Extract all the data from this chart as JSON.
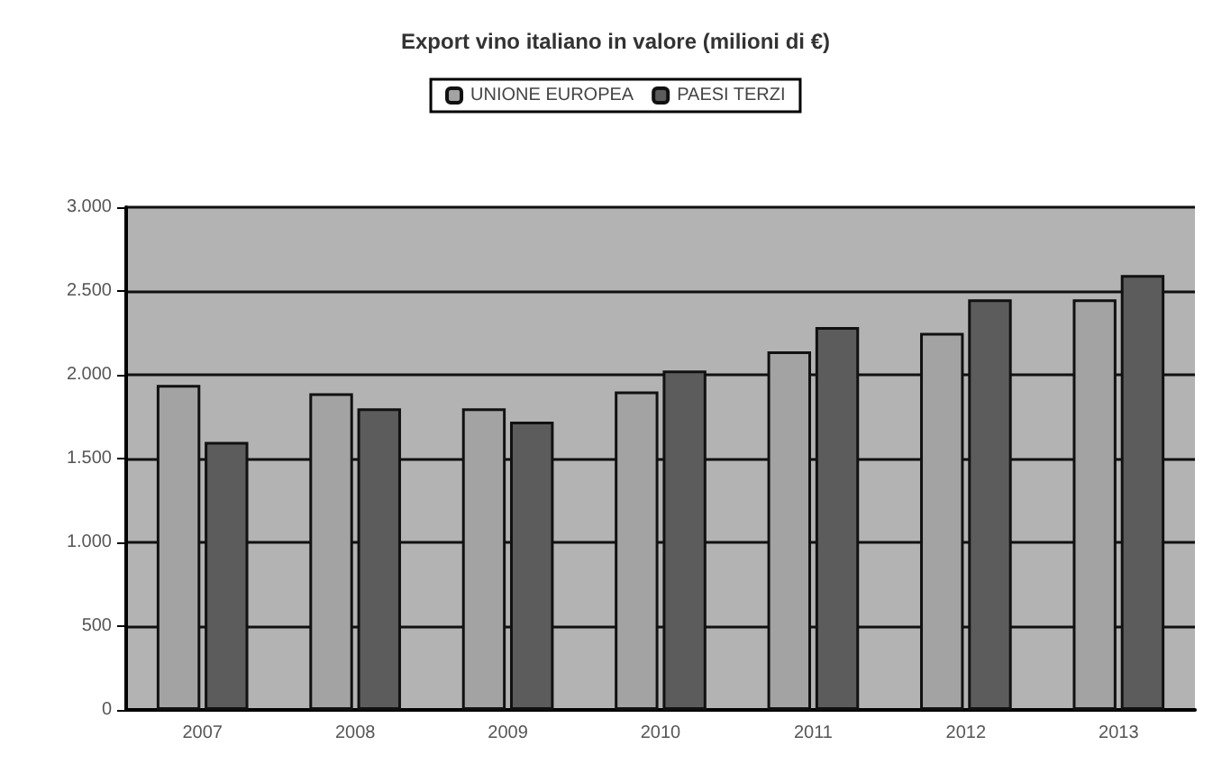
{
  "chart_data": {
    "type": "bar",
    "title": "Export vino italiano in valore (milioni di €)",
    "categories": [
      "2007",
      "2008",
      "2009",
      "2010",
      "2011",
      "2012",
      "2013"
    ],
    "series": [
      {
        "name": "UNIONE EUROPEA",
        "color": "#a3a3a3",
        "values": [
          1940,
          1890,
          1800,
          1900,
          2140,
          2250,
          2450
        ]
      },
      {
        "name": "PAESI TERZI",
        "color": "#5c5c5c",
        "values": [
          1600,
          1800,
          1720,
          2025,
          2285,
          2450,
          2595
        ]
      }
    ],
    "ylim": [
      0,
      3000
    ],
    "yticks": [
      0,
      500,
      {
        "value": 1000,
        "label": "1.000"
      },
      {
        "value": 1500,
        "label": "1.500"
      },
      {
        "value": 2000,
        "label": "2.000"
      },
      {
        "value": 2500,
        "label": "2.500"
      },
      {
        "value": 3000,
        "label": "3.000"
      }
    ],
    "grid": "y",
    "legend": "top"
  }
}
